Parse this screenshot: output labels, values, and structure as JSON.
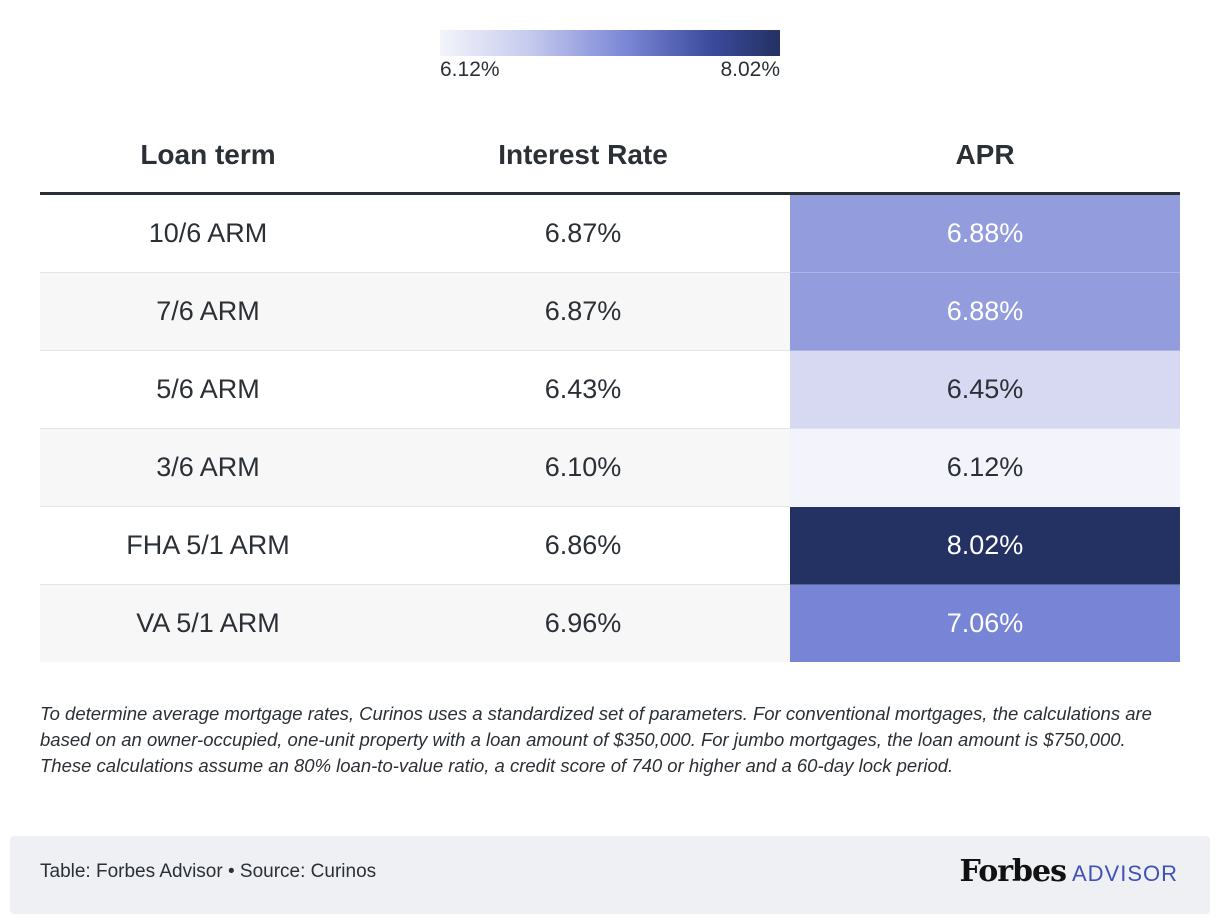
{
  "legend": {
    "min_label": "6.12%",
    "max_label": "8.02%",
    "min_value": 6.12,
    "max_value": 8.02
  },
  "chart_data": {
    "type": "table",
    "columns": [
      "Loan term",
      "Interest Rate",
      "APR"
    ],
    "rows": [
      {
        "term": "10/6 ARM",
        "rate": "6.87%",
        "apr": "6.88%",
        "apr_value": 6.88
      },
      {
        "term": "7/6 ARM",
        "rate": "6.87%",
        "apr": "6.88%",
        "apr_value": 6.88
      },
      {
        "term": "5/6 ARM",
        "rate": "6.43%",
        "apr": "6.45%",
        "apr_value": 6.45
      },
      {
        "term": "3/6 ARM",
        "rate": "6.10%",
        "apr": "6.12%",
        "apr_value": 6.12
      },
      {
        "term": "FHA 5/1 ARM",
        "rate": "6.86%",
        "apr": "8.02%",
        "apr_value": 8.02
      },
      {
        "term": "VA 5/1 ARM",
        "rate": "6.96%",
        "apr": "7.06%",
        "apr_value": 7.06
      }
    ],
    "heatmap_column": "APR"
  },
  "note": "To determine average mortgage rates, Curinos uses a standardized set of parameters. For conventional mortgages, the calculations are based on an owner-occupied, one-unit property with a loan amount of $350,000. For jumbo mortgages, the loan amount is $750,000. These calculations assume an 80% loan-to-value ratio, a credit score of 740 or higher and a 60-day lock period.",
  "footer": {
    "source": "Table: Forbes Advisor • Source: Curinos",
    "brand_name": "Forbes",
    "brand_sub": "ADVISOR"
  },
  "colors": {
    "scale": [
      "#f3f4fb",
      "#d5d8f1",
      "#939dde",
      "#7683d6",
      "#243163"
    ],
    "text_dark": "#2b3036",
    "text_light": "#ffffff",
    "brand_accent": "#3f52b5"
  }
}
